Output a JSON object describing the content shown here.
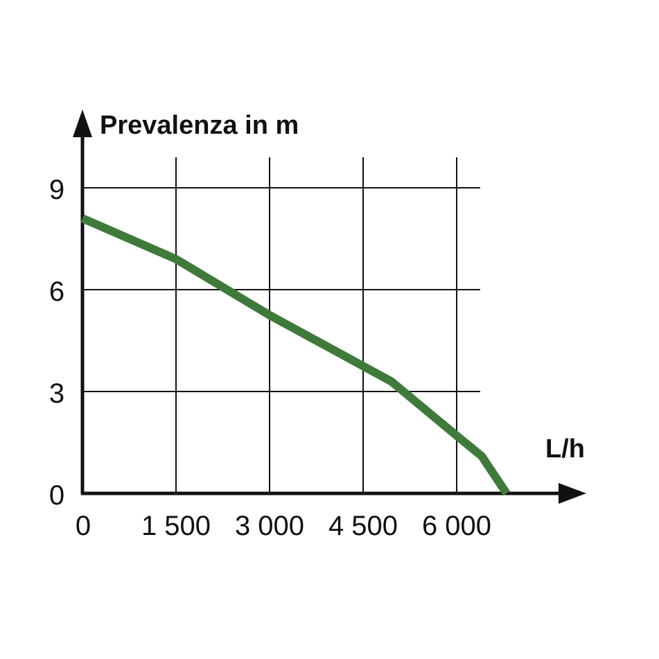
{
  "chart_data": {
    "type": "line",
    "title": "",
    "ylabel": "Prevalenza in m",
    "xlabel": "L/h",
    "xlim": [
      0,
      6700
    ],
    "ylim": [
      0,
      9
    ],
    "x_ticks": [
      {
        "value": 0,
        "label": "0"
      },
      {
        "value": 1500,
        "label": "1 500"
      },
      {
        "value": 3000,
        "label": "3 000"
      },
      {
        "value": 4500,
        "label": "4 500"
      },
      {
        "value": 6000,
        "label": "6 000"
      }
    ],
    "y_ticks": [
      {
        "value": 0,
        "label": "0"
      },
      {
        "value": 3,
        "label": "3"
      },
      {
        "value": 6,
        "label": "6"
      },
      {
        "value": 9,
        "label": "9"
      }
    ],
    "grid": true,
    "series": [
      {
        "color": "#3f7a3b",
        "x": [
          0,
          1500,
          3000,
          4500,
          4950,
          6000,
          6400,
          6800
        ],
        "y": [
          8.1,
          6.9,
          5.25,
          3.75,
          3.3,
          1.7,
          1.1,
          0
        ]
      }
    ]
  }
}
